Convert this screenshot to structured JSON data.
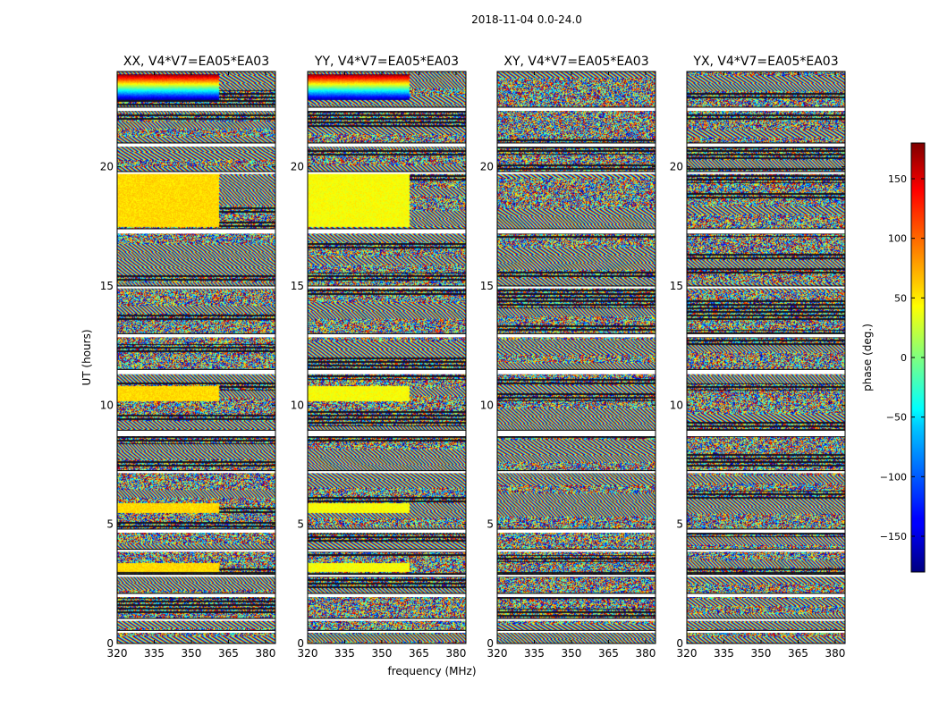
{
  "chart_data": {
    "type": "heatmap",
    "suptitle": "2018-11-04 0.0-24.0",
    "xlabel": "frequency (MHz)",
    "ylabel": "UT (hours)",
    "xlim": [
      320,
      384
    ],
    "ylim": [
      0,
      24
    ],
    "xticks": [
      320,
      335,
      350,
      365,
      380
    ],
    "yticks": [
      0,
      5,
      10,
      15,
      20
    ],
    "panels": [
      {
        "title": "XX, V4*V7=EA05*EA03",
        "polarization": "XX"
      },
      {
        "title": "YY, V4*V7=EA05*EA03",
        "polarization": "YY"
      },
      {
        "title": "XY, V4*V7=EA05*EA03",
        "polarization": "XY"
      },
      {
        "title": "YX, V4*V7=EA05*EA03",
        "polarization": "YX"
      }
    ],
    "colorbar": {
      "label": "phase (deg.)",
      "range": [
        -180,
        180
      ],
      "ticks": [
        -150,
        -100,
        -50,
        0,
        50,
        100,
        150
      ],
      "tick_labels": [
        "−150",
        "−100",
        "−50",
        "0",
        "50",
        "100",
        "150"
      ],
      "colormap": "jet"
    },
    "blank_hours": [
      [
        0.45,
        0.55
      ],
      [
        0.95,
        1.05
      ],
      [
        1.95,
        2.1
      ],
      [
        2.8,
        2.9
      ],
      [
        3.85,
        3.95
      ],
      [
        4.65,
        4.8
      ],
      [
        7.15,
        7.25
      ],
      [
        8.7,
        8.95
      ],
      [
        11.3,
        11.5
      ],
      [
        12.85,
        13.0
      ],
      [
        14.9,
        15.0
      ],
      [
        17.2,
        17.4
      ],
      [
        19.7,
        19.8
      ],
      [
        20.85,
        21.0
      ],
      [
        22.35,
        22.5
      ]
    ]
  }
}
